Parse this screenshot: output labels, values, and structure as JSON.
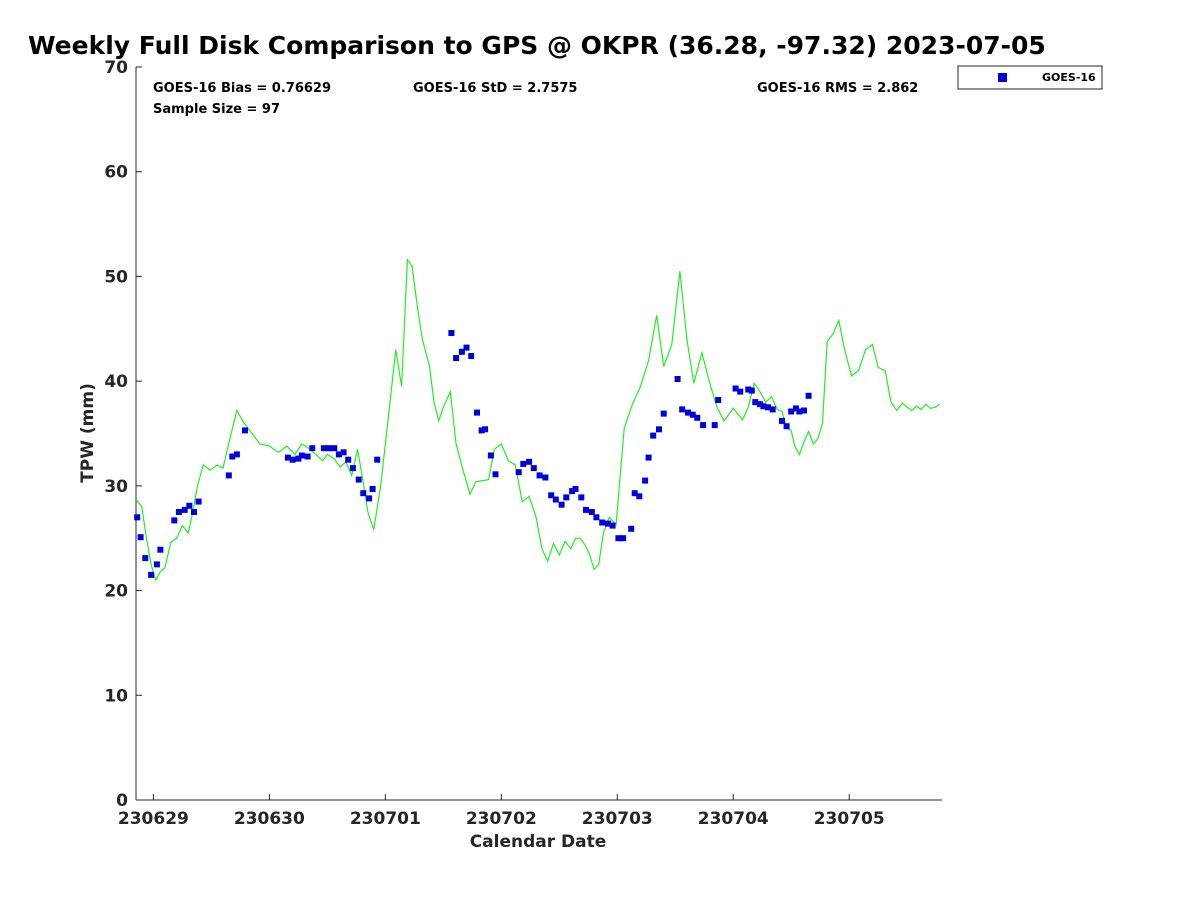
{
  "chart_data": {
    "type": "scatter",
    "title": "Weekly Full Disk Comparison to GPS @ OKPR (36.28, -97.32) 2023-07-05",
    "xlabel": "Calendar Date",
    "ylabel": "TPW (mm)",
    "xlim": [
      -0.15,
      6.8
    ],
    "ylim": [
      0,
      70
    ],
    "x_ticks": [
      0,
      1,
      2,
      3,
      4,
      5,
      6
    ],
    "x_tick_labels": [
      "230629",
      "230630",
      "230701",
      "230702",
      "230703",
      "230704",
      "230705"
    ],
    "y_ticks": [
      0,
      10,
      20,
      30,
      40,
      50,
      60,
      70
    ],
    "y_tick_labels": [
      "0",
      "10",
      "20",
      "30",
      "40",
      "50",
      "60",
      "70"
    ],
    "stats": {
      "bias": "GOES-16 Bias = 0.76629",
      "std": "GOES-16 StD = 2.7575",
      "rms": "GOES-16 RMS = 2.862",
      "sample_size": "Sample Size = 97"
    },
    "legend": {
      "label": "GOES-16",
      "position": "top-right outside"
    },
    "colors": {
      "goes": "#0000dd",
      "gps": "#22ee22"
    },
    "series": [
      {
        "name": "GOES-16",
        "kind": "markers",
        "x": [
          -0.14,
          -0.11,
          -0.07,
          -0.02,
          0.03,
          0.06,
          0.18,
          0.22,
          0.27,
          0.31,
          0.35,
          0.39,
          0.65,
          0.68,
          0.72,
          0.79,
          1.16,
          1.2,
          1.25,
          1.28,
          1.33,
          1.37,
          1.47,
          1.51,
          1.56,
          1.6,
          1.64,
          1.68,
          1.72,
          1.77,
          1.81,
          1.86,
          1.89,
          1.93,
          2.57,
          2.61,
          2.66,
          2.7,
          2.74,
          2.79,
          2.83,
          2.86,
          2.91,
          2.95,
          3.15,
          3.19,
          3.24,
          3.28,
          3.33,
          3.38,
          3.43,
          3.47,
          3.52,
          3.56,
          3.61,
          3.64,
          3.69,
          3.73,
          3.78,
          3.82,
          3.87,
          3.92,
          3.96,
          4.01,
          4.05,
          4.12,
          4.15,
          4.19,
          4.24,
          4.27,
          4.31,
          4.36,
          4.4,
          4.52,
          4.56,
          4.61,
          4.65,
          4.69,
          4.74,
          4.84,
          4.87,
          5.02,
          5.06,
          5.13,
          5.16,
          5.19,
          5.23,
          5.26,
          5.3,
          5.34,
          5.42,
          5.46,
          5.5,
          5.54,
          5.57,
          5.61,
          5.65
        ],
        "y": [
          27.0,
          25.1,
          23.1,
          21.5,
          22.5,
          23.9,
          26.7,
          27.5,
          27.7,
          28.1,
          27.5,
          28.5,
          31.0,
          32.8,
          33.0,
          35.3,
          32.7,
          32.5,
          32.6,
          32.9,
          32.8,
          33.6,
          33.6,
          33.6,
          33.6,
          33.0,
          33.2,
          32.5,
          31.7,
          30.6,
          29.3,
          28.8,
          29.7,
          32.5,
          44.6,
          42.2,
          42.8,
          43.2,
          42.4,
          37.0,
          35.3,
          35.4,
          32.9,
          31.1,
          31.3,
          32.1,
          32.3,
          31.7,
          31.0,
          30.8,
          29.1,
          28.7,
          28.2,
          28.9,
          29.5,
          29.7,
          28.9,
          27.7,
          27.5,
          27.0,
          26.5,
          26.4,
          26.2,
          25.0,
          25.0,
          25.9,
          29.3,
          29.0,
          30.5,
          32.7,
          34.8,
          35.4,
          36.9,
          40.2,
          37.3,
          37.0,
          36.8,
          36.5,
          35.8,
          35.8,
          38.2,
          39.3,
          39.0,
          39.2,
          39.1,
          38.0,
          37.8,
          37.6,
          37.5,
          37.3,
          36.2,
          35.7,
          37.1,
          37.4,
          37.1,
          37.2,
          38.6
        ]
      },
      {
        "name": "GPS",
        "kind": "line",
        "x": [
          -0.15,
          -0.1,
          -0.06,
          -0.02,
          0.02,
          0.06,
          0.1,
          0.15,
          0.2,
          0.25,
          0.3,
          0.33,
          0.38,
          0.43,
          0.49,
          0.55,
          0.6,
          0.66,
          0.72,
          0.78,
          0.85,
          0.92,
          1.0,
          1.08,
          1.15,
          1.22,
          1.28,
          1.34,
          1.4,
          1.46,
          1.5,
          1.56,
          1.61,
          1.66,
          1.71,
          1.76,
          1.8,
          1.85,
          1.9,
          1.96,
          2.02,
          2.09,
          2.14,
          2.19,
          2.23,
          2.28,
          2.32,
          2.35,
          2.38,
          2.42,
          2.46,
          2.5,
          2.56,
          2.61,
          2.67,
          2.73,
          2.78,
          2.84,
          2.89,
          2.94,
          3.0,
          3.06,
          3.12,
          3.18,
          3.24,
          3.3,
          3.35,
          3.4,
          3.45,
          3.5,
          3.55,
          3.6,
          3.64,
          3.68,
          3.72,
          3.76,
          3.8,
          3.84,
          3.88,
          3.93,
          3.99,
          4.06,
          4.13,
          4.2,
          4.27,
          4.34,
          4.4,
          4.47,
          4.54,
          4.6,
          4.66,
          4.73,
          4.8,
          4.86,
          4.92,
          5.0,
          5.08,
          5.13,
          5.18,
          5.23,
          5.28,
          5.33,
          5.38,
          5.42,
          5.46,
          5.5,
          5.53,
          5.57,
          5.61,
          5.65,
          5.69,
          5.73,
          5.77,
          5.81,
          5.86,
          5.91,
          5.96,
          6.02,
          6.08,
          6.14,
          6.2,
          6.25,
          6.31,
          6.36,
          6.41,
          6.46,
          6.5,
          6.54,
          6.58,
          6.62,
          6.66,
          6.7,
          6.74,
          6.78
        ],
        "y": [
          28.7,
          28.0,
          25.0,
          22.5,
          21.0,
          21.8,
          22.2,
          24.6,
          25.0,
          26.2,
          25.5,
          27.0,
          30.0,
          32.0,
          31.5,
          32.0,
          31.7,
          34.5,
          37.2,
          36.0,
          35.0,
          34.0,
          33.8,
          33.2,
          33.8,
          33.0,
          34.0,
          33.6,
          33.0,
          32.4,
          33.0,
          32.6,
          31.8,
          32.3,
          31.0,
          33.5,
          31.0,
          27.5,
          25.8,
          30.0,
          36.0,
          43.0,
          39.5,
          51.6,
          51.0,
          46.8,
          44.0,
          42.7,
          41.5,
          38.0,
          36.2,
          37.5,
          39.0,
          34.0,
          31.5,
          29.2,
          30.4,
          30.5,
          30.6,
          33.5,
          34.0,
          32.4,
          32.0,
          28.5,
          29.0,
          27.0,
          24.0,
          22.8,
          24.5,
          23.4,
          24.7,
          24.0,
          25.0,
          25.0,
          24.4,
          23.5,
          22.0,
          22.5,
          25.5,
          27.0,
          26.3,
          35.5,
          37.8,
          39.5,
          42.0,
          46.3,
          41.4,
          43.5,
          50.5,
          44.0,
          39.8,
          42.7,
          39.7,
          37.5,
          36.2,
          37.4,
          36.3,
          37.5,
          39.8,
          39.0,
          38.0,
          38.5,
          37.3,
          37.1,
          35.5,
          35.3,
          33.8,
          33.0,
          34.2,
          35.2,
          34.0,
          34.5,
          36.0,
          43.8,
          44.5,
          45.8,
          43.0,
          40.5,
          41.0,
          43.0,
          43.5,
          41.3,
          41.0,
          38.0,
          37.2,
          37.9,
          37.5,
          37.2,
          37.6,
          37.3,
          37.8,
          37.4,
          37.5,
          37.8
        ]
      }
    ]
  }
}
